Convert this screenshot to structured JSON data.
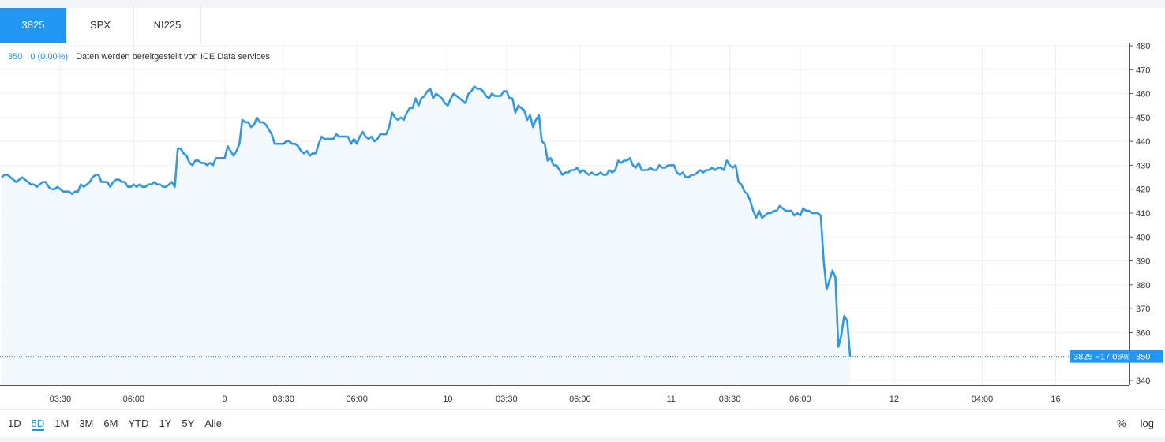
{
  "tabs": [
    {
      "label": "3825",
      "active": true
    },
    {
      "label": "SPX",
      "active": false
    },
    {
      "label": "NI225",
      "active": false
    }
  ],
  "legend": {
    "value": "350",
    "change": "0 (0.00%)",
    "source": "Daten werden bereitgestellt von ICE Data services"
  },
  "price_label": {
    "symbol": "3825",
    "change": "−17.06%",
    "value": "350"
  },
  "ranges": [
    {
      "label": "1D",
      "active": false
    },
    {
      "label": "5D",
      "active": true
    },
    {
      "label": "1M",
      "active": false
    },
    {
      "label": "3M",
      "active": false
    },
    {
      "label": "6M",
      "active": false
    },
    {
      "label": "YTD",
      "active": false
    },
    {
      "label": "1Y",
      "active": false
    },
    {
      "label": "5Y",
      "active": false
    },
    {
      "label": "Alle",
      "active": false
    }
  ],
  "controls": {
    "percent": "%",
    "log": "log"
  },
  "colors": {
    "line": "#3498db",
    "accent": "#2196f3",
    "fill": "#f2f8fc",
    "grid": "#eef0f3"
  },
  "chart_data": {
    "type": "area",
    "ylim": [
      338,
      481
    ],
    "yticks": [
      340,
      350,
      360,
      370,
      380,
      390,
      400,
      410,
      420,
      430,
      440,
      450,
      460,
      470,
      480
    ],
    "grid": true,
    "x_count": 287,
    "xticks": [
      {
        "i": 20,
        "label": "03:30"
      },
      {
        "i": 45,
        "label": "06:00"
      },
      {
        "i": 76,
        "label": "9"
      },
      {
        "i": 96,
        "label": "03:30"
      },
      {
        "i": 121,
        "label": "06:00"
      },
      {
        "i": 152,
        "label": "10"
      },
      {
        "i": 172,
        "label": "03:30"
      },
      {
        "i": 197,
        "label": "06:00"
      },
      {
        "i": 228,
        "label": "11"
      },
      {
        "i": 248,
        "label": "03:30"
      },
      {
        "i": 272,
        "label": "06:00"
      },
      {
        "i": 304,
        "label": "12"
      },
      {
        "i": 334,
        "label": "04:00"
      },
      {
        "i": 359,
        "label": "16"
      }
    ],
    "values": [
      425,
      426,
      426,
      425,
      424,
      423,
      424,
      425,
      424,
      423,
      422,
      422,
      421,
      422,
      423,
      423,
      421,
      420,
      420,
      421,
      420,
      419,
      419,
      419,
      418,
      419,
      419,
      422,
      421,
      422,
      423,
      425,
      426,
      426,
      423,
      423,
      423,
      421,
      423,
      424,
      424,
      423,
      423,
      421,
      421,
      422,
      421,
      422,
      421,
      421,
      422,
      422,
      423,
      422,
      422,
      421,
      421,
      422,
      423,
      421,
      437,
      437,
      435,
      434,
      431,
      430,
      432,
      432,
      431,
      431,
      430,
      431,
      430,
      433,
      433,
      433,
      433,
      438,
      436,
      434,
      436,
      439,
      449,
      448,
      448,
      446,
      447,
      450,
      448,
      448,
      447,
      445,
      443,
      439,
      439,
      439,
      439,
      440,
      440,
      439,
      439,
      438,
      436,
      435,
      436,
      434,
      435,
      435,
      439,
      442,
      441,
      441,
      441,
      441,
      443,
      442,
      442,
      442,
      442,
      439,
      441,
      439,
      442,
      444,
      442,
      441,
      442,
      440,
      441,
      443,
      443,
      443,
      446,
      452,
      450,
      449,
      450,
      449,
      452,
      454,
      454,
      458,
      455,
      458,
      459,
      461,
      462,
      458,
      460,
      459,
      458,
      456,
      455,
      458,
      460,
      459,
      458,
      457,
      456,
      460,
      461,
      463,
      462,
      462,
      461,
      459,
      458,
      460,
      459,
      459,
      459,
      461,
      461,
      458,
      458,
      452,
      455,
      454,
      453,
      449,
      451,
      446,
      449,
      451,
      440,
      439,
      432,
      433,
      430,
      430,
      428,
      426,
      427,
      427,
      428,
      428,
      429,
      427,
      428,
      427,
      426,
      427,
      426,
      426,
      427,
      426,
      426,
      428,
      427,
      428,
      432,
      431,
      432,
      432,
      433,
      430,
      429,
      431,
      428,
      428,
      428,
      429,
      428,
      428,
      430,
      429,
      429,
      430,
      430,
      430,
      427,
      426,
      427,
      425,
      425,
      426,
      426,
      427,
      428,
      427,
      428,
      428,
      429,
      428,
      429,
      429,
      428,
      432,
      430,
      429,
      430,
      423,
      422,
      419,
      418,
      415,
      411,
      408,
      411,
      408,
      409,
      410,
      410,
      411,
      411,
      413,
      412,
      411,
      411,
      411,
      409,
      410,
      409,
      412,
      411,
      411,
      410,
      410,
      410,
      409,
      390,
      378,
      382,
      386,
      383,
      354,
      359,
      367,
      365,
      350
    ]
  }
}
